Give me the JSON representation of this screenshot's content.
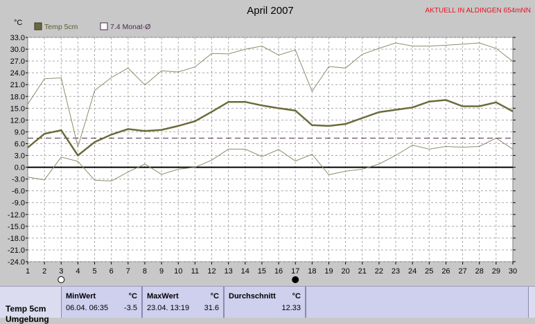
{
  "chart_data": {
    "type": "line",
    "title": "April 2007",
    "top_right_note": "AKTUELL IN ALDINGEN 654mNN",
    "ylabel": "°C",
    "y_ticks": [
      "33.0",
      "30.0",
      "27.0",
      "24.0",
      "21.0",
      "18.0",
      "15.0",
      "12.0",
      "9.0",
      "6.0",
      "3.0",
      "0.0",
      "-3.0",
      "-6.0",
      "-9.0",
      "-12.0",
      "-15.0",
      "-18.0",
      "-21.0",
      "-24.0"
    ],
    "ylim": [
      -24,
      33
    ],
    "x": [
      1,
      2,
      3,
      4,
      5,
      6,
      7,
      8,
      9,
      10,
      11,
      12,
      13,
      14,
      15,
      16,
      17,
      18,
      19,
      20,
      21,
      22,
      23,
      24,
      25,
      26,
      27,
      28,
      29,
      30
    ],
    "x_ticks": [
      "1",
      "2",
      "3",
      "4",
      "5",
      "6",
      "7",
      "8",
      "9",
      "10",
      "11",
      "12",
      "13",
      "14",
      "15",
      "16",
      "17",
      "18",
      "19",
      "20",
      "21",
      "22",
      "23",
      "24",
      "25",
      "26",
      "27",
      "28",
      "29",
      "30"
    ],
    "grid": true,
    "reference_line": {
      "name": "7.4 Monat-Ø",
      "value": 7.4,
      "color": "#4a2a4a"
    },
    "zero_line": 0,
    "legend_placement": "top-left",
    "moon_markers": [
      {
        "day": 3,
        "phase": "full"
      },
      {
        "day": 17,
        "phase": "new"
      }
    ],
    "series": [
      {
        "name": "Temp 5cm",
        "role": "mean",
        "color": "#6b6b3a",
        "values": [
          5.0,
          8.5,
          9.4,
          3.0,
          6.4,
          8.3,
          9.7,
          9.2,
          9.5,
          10.5,
          11.7,
          14.1,
          16.6,
          16.6,
          15.7,
          15.0,
          14.4,
          10.7,
          10.5,
          11.0,
          12.5,
          14.0,
          14.6,
          15.2,
          16.7,
          17.1,
          15.5,
          15.5,
          16.5,
          14.2
        ]
      },
      {
        "role": "max",
        "color": "#8c8c6c",
        "values": [
          16.0,
          22.5,
          22.7,
          5.2,
          19.5,
          22.8,
          25.2,
          20.9,
          24.5,
          24.2,
          25.5,
          28.9,
          28.8,
          30.0,
          30.8,
          28.5,
          29.8,
          19.3,
          25.6,
          25.2,
          28.7,
          30.2,
          31.6,
          30.8,
          30.8,
          31.0,
          31.3,
          31.6,
          30.2,
          26.9
        ]
      },
      {
        "role": "min",
        "color": "#8c8c6c",
        "values": [
          -2.5,
          -3.2,
          2.6,
          1.5,
          -3.3,
          -3.5,
          -1.2,
          0.8,
          -1.8,
          -0.5,
          0.0,
          1.8,
          4.6,
          4.6,
          2.7,
          4.5,
          1.6,
          3.3,
          -1.9,
          -1.0,
          -0.5,
          0.8,
          3.0,
          5.6,
          4.6,
          5.3,
          5.1,
          5.3,
          7.4,
          4.6
        ]
      }
    ]
  },
  "stats": {
    "row_label": "Temp 5cm",
    "row_label_2": "Umgebung",
    "min": {
      "header": "MinWert",
      "unit": "°C",
      "date": "06.04.  06:35",
      "value": "-3.5"
    },
    "max": {
      "header": "MaxWert",
      "unit": "°C",
      "date": "23.04.  13:19",
      "value": "31.6"
    },
    "avg": {
      "header": "Durchschnitt",
      "unit": "°C",
      "value": "12.33"
    }
  }
}
